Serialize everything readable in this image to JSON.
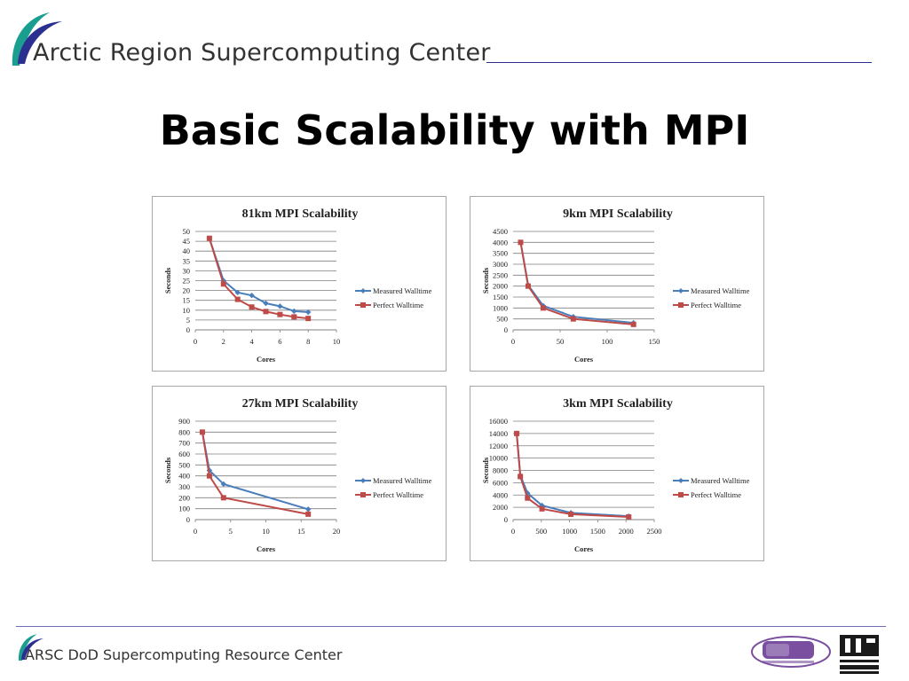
{
  "header": {
    "org_name": "Arctic Region Supercomputing Center",
    "title": "Basic Scalability with MPI"
  },
  "footer": {
    "org_name": "ARSC DoD Supercomputing Resource Center"
  },
  "colors": {
    "measured": "#4a7ebb",
    "perfect": "#be4b48",
    "brand_line": "#2b2f8f"
  },
  "icons": [
    "arsc-swoosh-logo-icon",
    "hpc-logo-icon",
    "uaf-logo-icon"
  ],
  "chart_data": [
    {
      "type": "line",
      "title": "81km MPI Scalability",
      "xlabel": "Cores",
      "ylabel": "Seconds",
      "xlim": [
        0,
        10
      ],
      "ylim": [
        0,
        50
      ],
      "xticks": [
        0,
        2,
        4,
        6,
        8,
        10
      ],
      "yticks": [
        0,
        5,
        10,
        15,
        20,
        25,
        30,
        35,
        40,
        45,
        50
      ],
      "grid": true,
      "legend": "right",
      "series": [
        {
          "name": "Measured Walltime",
          "x": [
            1,
            2,
            3,
            4,
            5,
            6,
            7,
            8
          ],
          "y": [
            46.5,
            25,
            19,
            17.5,
            13.5,
            12,
            9.5,
            9
          ]
        },
        {
          "name": "Perfect Walltime",
          "x": [
            1,
            2,
            3,
            4,
            5,
            6,
            7,
            8
          ],
          "y": [
            46.5,
            23.3,
            15.5,
            11.6,
            9.3,
            7.8,
            6.6,
            5.8
          ]
        }
      ]
    },
    {
      "type": "line",
      "title": "9km MPI Scalability",
      "xlabel": "Cores",
      "ylabel": "Seconds",
      "xlim": [
        0,
        150
      ],
      "ylim": [
        0,
        4500
      ],
      "xticks": [
        0,
        50,
        100,
        150
      ],
      "yticks": [
        0,
        500,
        1000,
        1500,
        2000,
        2500,
        3000,
        3500,
        4000,
        4500
      ],
      "grid": true,
      "legend": "right",
      "series": [
        {
          "name": "Measured Walltime",
          "x": [
            8,
            16,
            32,
            64,
            128
          ],
          "y": [
            4000,
            2050,
            1100,
            600,
            320
          ]
        },
        {
          "name": "Perfect Walltime",
          "x": [
            8,
            16,
            32,
            64,
            128
          ],
          "y": [
            4000,
            2000,
            1000,
            500,
            250
          ]
        }
      ]
    },
    {
      "type": "line",
      "title": "27km MPI Scalability",
      "xlabel": "Cores",
      "ylabel": "Seconds",
      "xlim": [
        0,
        20
      ],
      "ylim": [
        0,
        900
      ],
      "xticks": [
        0,
        5,
        10,
        15,
        20
      ],
      "yticks": [
        0,
        100,
        200,
        300,
        400,
        500,
        600,
        700,
        800,
        900
      ],
      "grid": true,
      "legend": "right",
      "series": [
        {
          "name": "Measured Walltime",
          "x": [
            1,
            2,
            4,
            16
          ],
          "y": [
            800,
            450,
            325,
            95
          ]
        },
        {
          "name": "Perfect Walltime",
          "x": [
            1,
            2,
            4,
            16
          ],
          "y": [
            800,
            400,
            200,
            50
          ]
        }
      ]
    },
    {
      "type": "line",
      "title": "3km MPI Scalability",
      "xlabel": "Cores",
      "ylabel": "Seconds",
      "xlim": [
        0,
        2500
      ],
      "ylim": [
        0,
        16000
      ],
      "xticks": [
        0,
        500,
        1000,
        1500,
        2000,
        2500
      ],
      "yticks": [
        0,
        2000,
        4000,
        6000,
        8000,
        10000,
        12000,
        14000,
        16000
      ],
      "grid": true,
      "legend": "right",
      "series": [
        {
          "name": "Measured Walltime",
          "x": [
            64,
            128,
            256,
            512,
            1024,
            2048
          ],
          "y": [
            14000,
            7200,
            4300,
            2300,
            1100,
            550
          ]
        },
        {
          "name": "Perfect Walltime",
          "x": [
            64,
            128,
            256,
            512,
            1024,
            2048
          ],
          "y": [
            14000,
            7000,
            3500,
            1750,
            875,
            440
          ]
        }
      ]
    }
  ]
}
